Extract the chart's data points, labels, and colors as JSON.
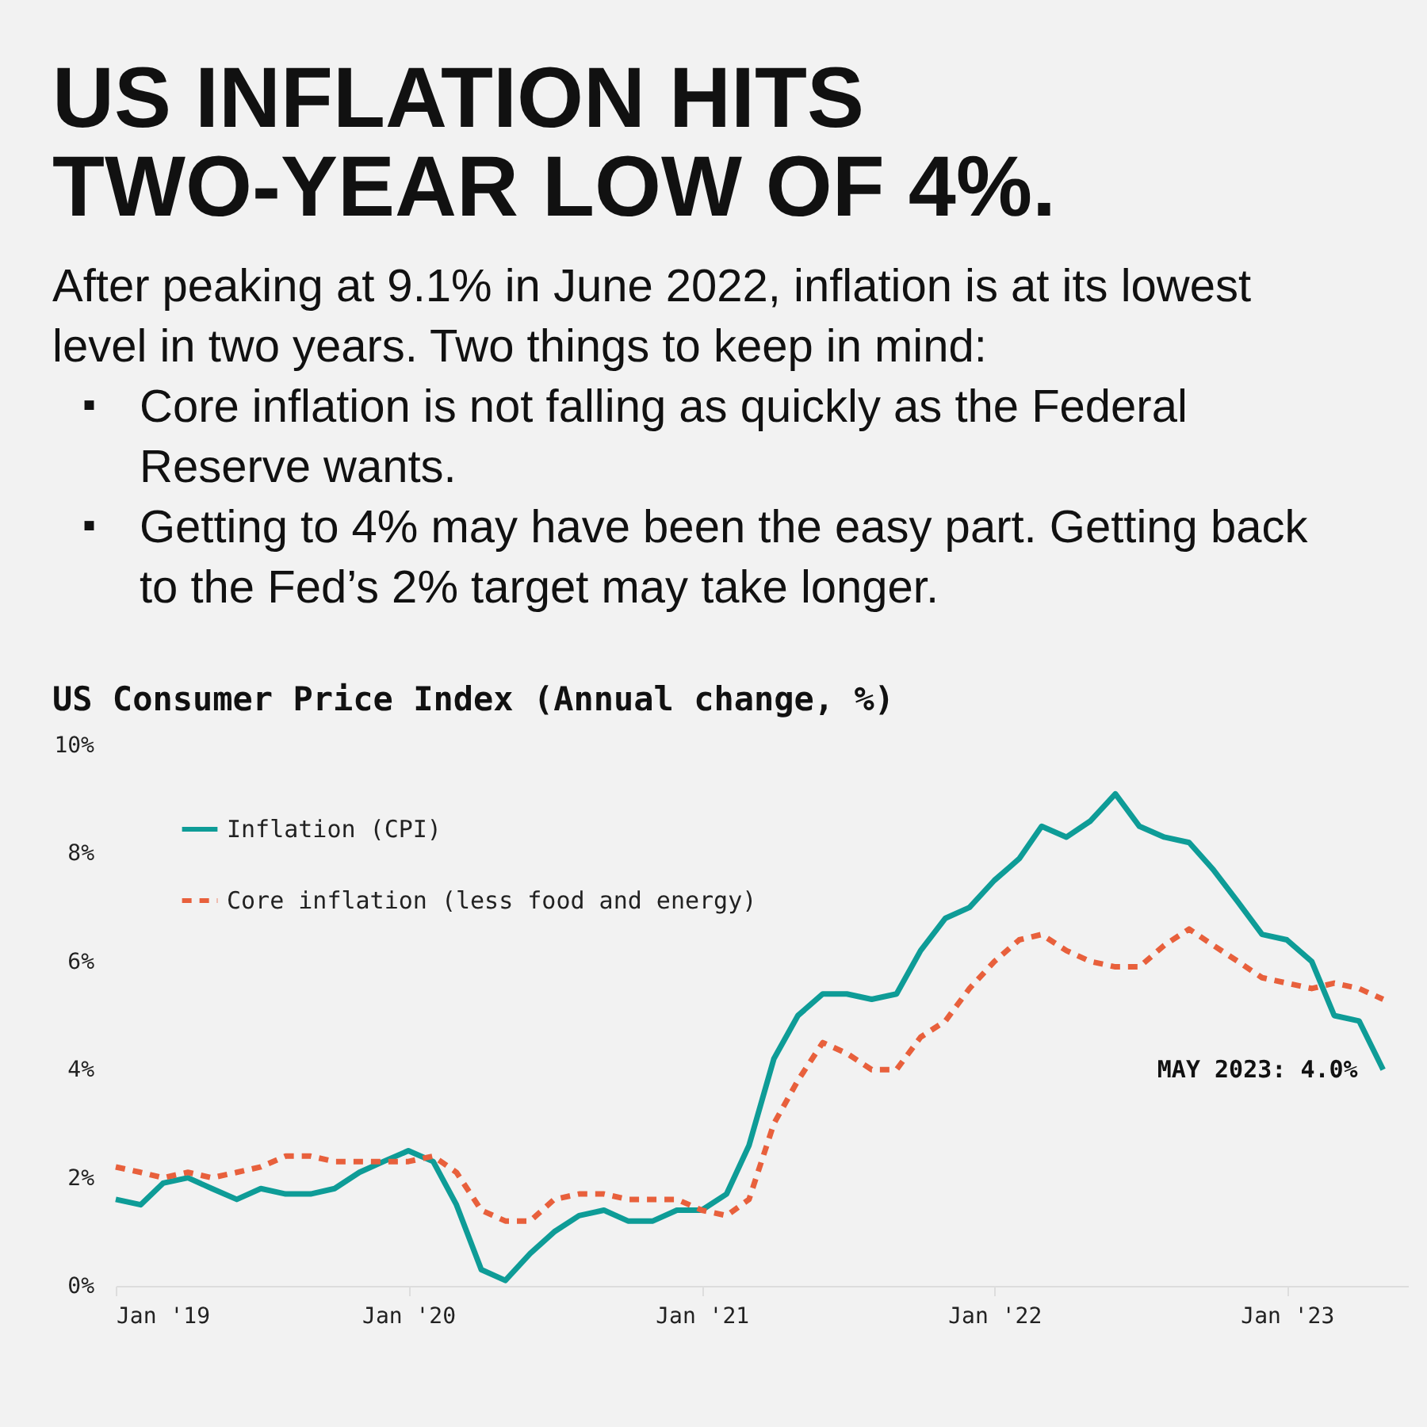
{
  "chart_data": {
    "type": "line",
    "title": "US INFLATION HITS TWO-YEAR LOW OF 4%.",
    "subtitle": "After peaking at 9.1% in June 2022, inflation is at its lowest level in two years. Two things to keep in mind:\n▪ Core inflation is not falling as quickly as the Federal Reserve wants.\n▪ Getting to 4% may have been the easy part. Getting back to the Fed’s 2% target may take longer.",
    "ylabel": "US Consumer Price Index (Annual change, %)",
    "x": [
      "2019-01",
      "2019-02",
      "2019-03",
      "2019-04",
      "2019-05",
      "2019-06",
      "2019-07",
      "2019-08",
      "2019-09",
      "2019-10",
      "2019-11",
      "2019-12",
      "2020-01",
      "2020-02",
      "2020-03",
      "2020-04",
      "2020-05",
      "2020-06",
      "2020-07",
      "2020-08",
      "2020-09",
      "2020-10",
      "2020-11",
      "2020-12",
      "2021-01",
      "2021-02",
      "2021-03",
      "2021-04",
      "2021-05",
      "2021-06",
      "2021-07",
      "2021-08",
      "2021-09",
      "2021-10",
      "2021-11",
      "2021-12",
      "2022-01",
      "2022-02",
      "2022-03",
      "2022-04",
      "2022-05",
      "2022-06",
      "2022-07",
      "2022-08",
      "2022-09",
      "2022-10",
      "2022-11",
      "2022-12",
      "2023-01",
      "2023-02",
      "2023-03",
      "2023-04",
      "2023-05"
    ],
    "series": [
      {
        "name": "Inflation (CPI)",
        "color": "#0e9c97",
        "line_style": "solid",
        "values": [
          1.6,
          1.5,
          1.9,
          2.0,
          1.8,
          1.6,
          1.8,
          1.7,
          1.7,
          1.8,
          2.1,
          2.3,
          2.5,
          2.3,
          1.5,
          0.3,
          0.1,
          0.6,
          1.0,
          1.3,
          1.4,
          1.2,
          1.2,
          1.4,
          1.4,
          1.7,
          2.6,
          4.2,
          5.0,
          5.4,
          5.4,
          5.3,
          5.4,
          6.2,
          6.8,
          7.0,
          7.5,
          7.9,
          8.5,
          8.3,
          8.6,
          9.1,
          8.5,
          8.3,
          8.2,
          7.7,
          7.1,
          6.5,
          6.4,
          6.0,
          5.0,
          4.9,
          4.0
        ]
      },
      {
        "name": "Core inflation (less food and energy)",
        "color": "#e8603c",
        "line_style": "dashed",
        "values": [
          2.2,
          2.1,
          2.0,
          2.1,
          2.0,
          2.1,
          2.2,
          2.4,
          2.4,
          2.3,
          2.3,
          2.3,
          2.3,
          2.4,
          2.1,
          1.4,
          1.2,
          1.2,
          1.6,
          1.7,
          1.7,
          1.6,
          1.6,
          1.6,
          1.4,
          1.3,
          1.6,
          3.0,
          3.8,
          4.5,
          4.3,
          4.0,
          4.0,
          4.6,
          4.9,
          5.5,
          6.0,
          6.4,
          6.5,
          6.2,
          6.0,
          5.9,
          5.9,
          6.3,
          6.6,
          6.3,
          6.0,
          5.7,
          5.6,
          5.5,
          5.6,
          5.5,
          5.3
        ]
      }
    ],
    "xlim": [
      "2019-01",
      "2023-06"
    ],
    "xticks": [
      {
        "value": "2019-01",
        "label": "Jan '19"
      },
      {
        "value": "2020-01",
        "label": "Jan '20"
      },
      {
        "value": "2021-01",
        "label": "Jan '21"
      },
      {
        "value": "2022-01",
        "label": "Jan '22"
      },
      {
        "value": "2023-01",
        "label": "Jan '23"
      }
    ],
    "ylim": [
      0,
      10
    ],
    "yticks": [
      {
        "value": 0,
        "label": "0%"
      },
      {
        "value": 2,
        "label": "2%"
      },
      {
        "value": 4,
        "label": "4%"
      },
      {
        "value": 6,
        "label": "6%"
      },
      {
        "value": 8,
        "label": "8%"
      },
      {
        "value": 10,
        "label": "10%"
      }
    ],
    "annotations": [
      {
        "text": "MAY 2023: 4.0%",
        "x": "2023-05",
        "y": 4.0
      }
    ],
    "legend": "top left",
    "grid": false,
    "marker": "none"
  }
}
